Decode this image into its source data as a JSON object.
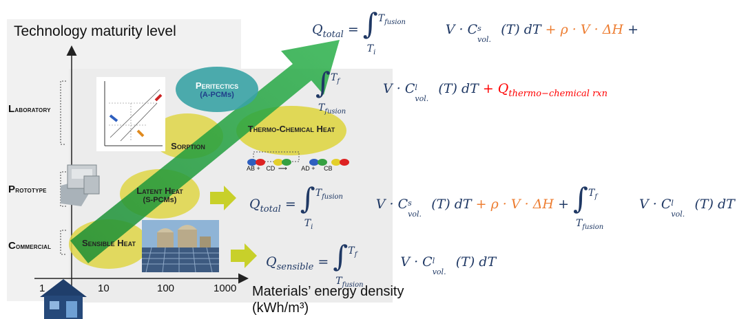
{
  "title": "Technology maturity level",
  "levels": {
    "laboratory": "Laboratory",
    "prototype": "Prototype",
    "commercial": "Commercial"
  },
  "x_ticks": [
    "1",
    "10",
    "100",
    "1000"
  ],
  "x_label_line1": "Materials’ energy density",
  "x_label_line2": "(kWh/m³)",
  "technologies": {
    "peritectics": "Peritectics",
    "peritectics_sub": "(A-PCMs)",
    "sorption": "Sorption",
    "thermo_chemical": "Thermo-Chemical Heat",
    "latent": "Latent Heat",
    "latent_sub": "(S-PCMs)",
    "sensible": "Sensible Heat"
  },
  "reaction": {
    "ab": "AB",
    "cd": "CD",
    "ad": "AD",
    "cb": "CB",
    "plus": "+",
    "arrow": "⟶"
  },
  "icons": [
    "house-icon",
    "prototype-machine-icon",
    "phase-diagram-icon",
    "reaction-molecule-icon",
    "industrial-plant-photo",
    "green-maturity-arrow",
    "yellow-right-arrow"
  ],
  "colors": {
    "ellipse_yellow": "#dfd646",
    "ellipse_teal": "#3aa3a5",
    "arrow_green": "#1e9e3a",
    "eq_blue": "#1f3864",
    "eq_orange": "#ed7d31",
    "eq_red": "#ff0000"
  },
  "equations": {
    "q_total": "Q",
    "total_sub": "total",
    "equals": "=",
    "T_fusion": "T",
    "fusion_sub": "fusion",
    "T_i": "T",
    "i_sub": "i",
    "T_f": "T",
    "f_sub": "f",
    "V_dot_C": "V · C",
    "vol_sub": "vol.",
    "s_sup": "s",
    "l_sup": "l",
    "T_dT": "(T) dT",
    "latent_term": "+ ρ · V · ΔH",
    "plus": "+",
    "q_chem": "+ Q",
    "chem_sub": "thermo−chemical rxn",
    "q_sensible": "Q",
    "sensible_sub": "sensible"
  }
}
